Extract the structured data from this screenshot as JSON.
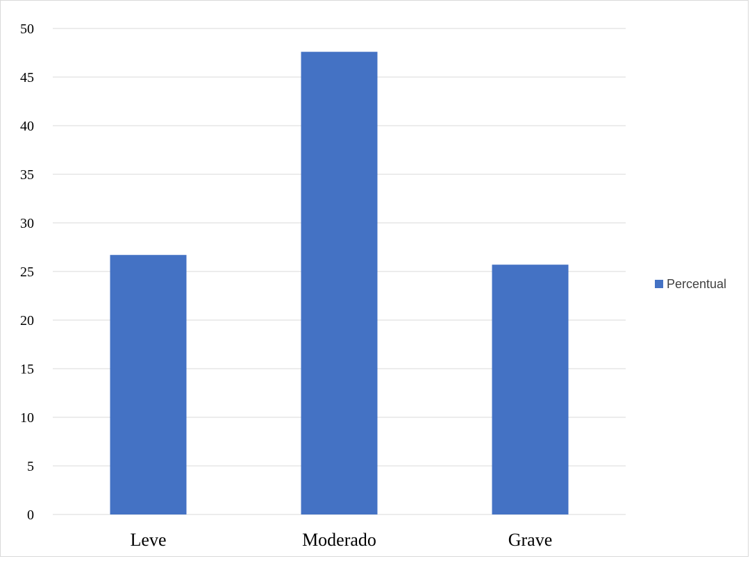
{
  "chart_data": {
    "type": "bar",
    "title": "",
    "xlabel": "",
    "ylabel": "",
    "categories": [
      "Leve",
      "Moderado",
      "Grave"
    ],
    "series": [
      {
        "name": "Percentual",
        "values": [
          26.7,
          47.6,
          25.7
        ],
        "color": "#4472c4"
      }
    ],
    "ylim": [
      0,
      50
    ],
    "yticks": [
      0,
      5,
      10,
      15,
      20,
      25,
      30,
      35,
      40,
      45,
      50
    ],
    "grid": true,
    "legend_position": "right",
    "gridline_color": "#d9d9d9"
  }
}
